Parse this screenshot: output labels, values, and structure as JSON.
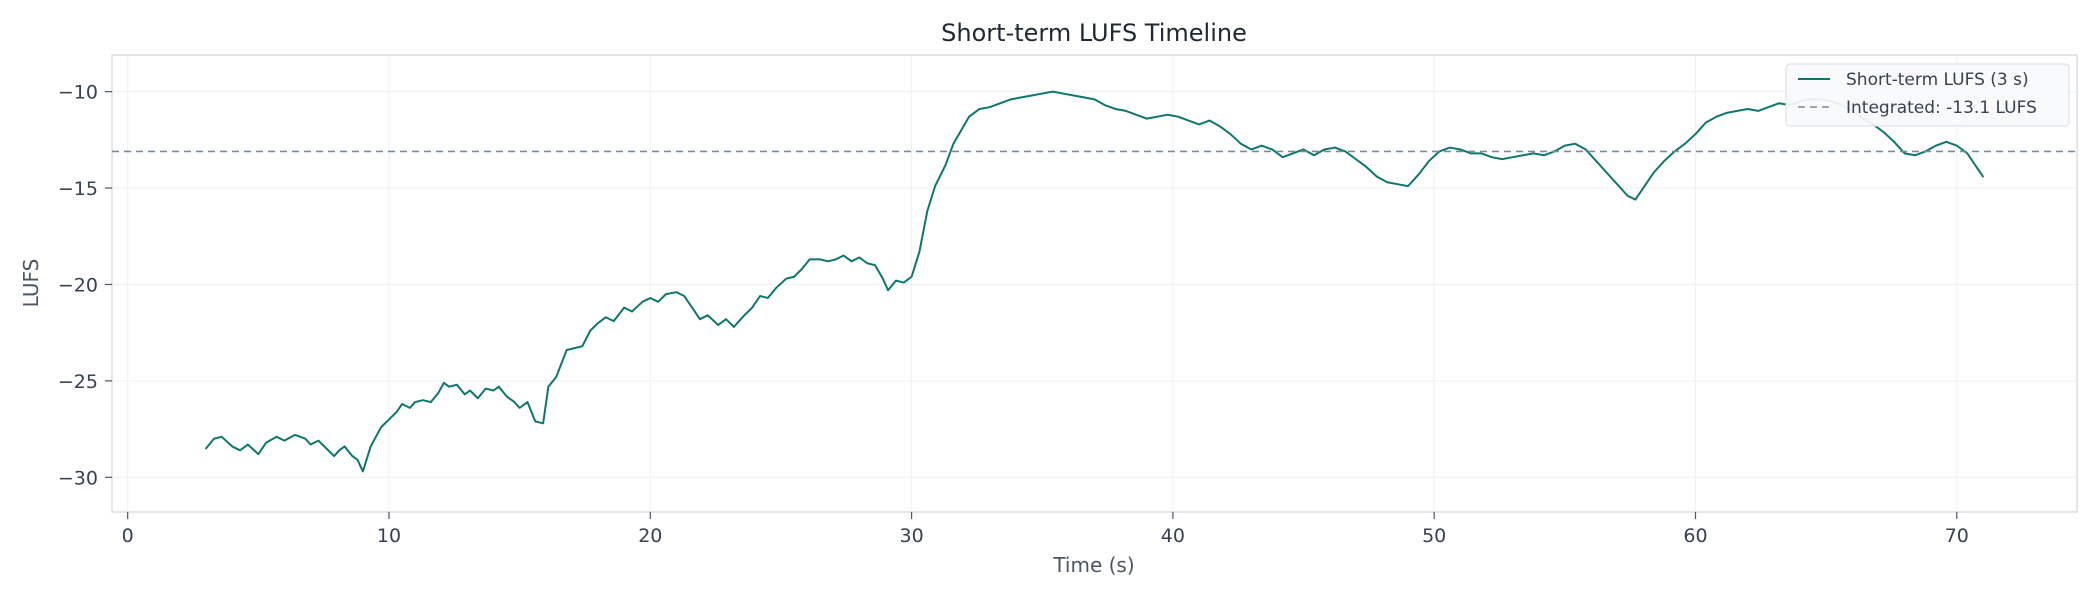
{
  "chart_data": {
    "type": "line",
    "title": "Short-term LUFS Timeline",
    "xlabel": "Time (s)",
    "ylabel": "LUFS",
    "xlim": [
      -0.6,
      74.6
    ],
    "ylim": [
      -31.8,
      -8.1
    ],
    "x_ticks": [
      0,
      10,
      20,
      30,
      40,
      50,
      60,
      70
    ],
    "y_ticks": [
      -10,
      -15,
      -20,
      -25,
      -30
    ],
    "x_tick_labels": [
      "0",
      "10",
      "20",
      "30",
      "40",
      "50",
      "60",
      "70"
    ],
    "y_tick_labels": [
      "−10",
      "−15",
      "−20",
      "−25",
      "−30"
    ],
    "grid": true,
    "legend_position": "top-right",
    "series": [
      {
        "name": "Short-term LUFS (3 s)",
        "color": "#0f766e",
        "style": "solid",
        "points": [
          [
            3.0,
            -28.5
          ],
          [
            3.3,
            -28.0
          ],
          [
            3.6,
            -27.9
          ],
          [
            4.0,
            -28.4
          ],
          [
            4.3,
            -28.6
          ],
          [
            4.6,
            -28.3
          ],
          [
            5.0,
            -28.8
          ],
          [
            5.3,
            -28.2
          ],
          [
            5.7,
            -27.9
          ],
          [
            6.0,
            -28.1
          ],
          [
            6.4,
            -27.8
          ],
          [
            6.8,
            -28.0
          ],
          [
            7.0,
            -28.3
          ],
          [
            7.3,
            -28.1
          ],
          [
            7.6,
            -28.5
          ],
          [
            7.9,
            -28.9
          ],
          [
            8.1,
            -28.6
          ],
          [
            8.3,
            -28.4
          ],
          [
            8.6,
            -28.9
          ],
          [
            8.8,
            -29.1
          ],
          [
            9.0,
            -29.7
          ],
          [
            9.3,
            -28.4
          ],
          [
            9.7,
            -27.4
          ],
          [
            10.0,
            -27.0
          ],
          [
            10.3,
            -26.6
          ],
          [
            10.5,
            -26.2
          ],
          [
            10.8,
            -26.4
          ],
          [
            11.0,
            -26.1
          ],
          [
            11.3,
            -26.0
          ],
          [
            11.6,
            -26.1
          ],
          [
            11.9,
            -25.6
          ],
          [
            12.1,
            -25.1
          ],
          [
            12.3,
            -25.3
          ],
          [
            12.6,
            -25.2
          ],
          [
            12.9,
            -25.7
          ],
          [
            13.1,
            -25.5
          ],
          [
            13.4,
            -25.9
          ],
          [
            13.7,
            -25.4
          ],
          [
            14.0,
            -25.5
          ],
          [
            14.2,
            -25.3
          ],
          [
            14.5,
            -25.8
          ],
          [
            14.8,
            -26.1
          ],
          [
            15.0,
            -26.4
          ],
          [
            15.3,
            -26.1
          ],
          [
            15.6,
            -27.1
          ],
          [
            15.9,
            -27.2
          ],
          [
            16.1,
            -25.3
          ],
          [
            16.4,
            -24.8
          ],
          [
            16.8,
            -23.4
          ],
          [
            17.1,
            -23.3
          ],
          [
            17.4,
            -23.2
          ],
          [
            17.7,
            -22.4
          ],
          [
            18.0,
            -22.0
          ],
          [
            18.3,
            -21.7
          ],
          [
            18.6,
            -21.9
          ],
          [
            19.0,
            -21.2
          ],
          [
            19.3,
            -21.4
          ],
          [
            19.7,
            -20.9
          ],
          [
            20.0,
            -20.7
          ],
          [
            20.3,
            -20.9
          ],
          [
            20.6,
            -20.5
          ],
          [
            21.0,
            -20.4
          ],
          [
            21.3,
            -20.6
          ],
          [
            21.6,
            -21.2
          ],
          [
            21.9,
            -21.8
          ],
          [
            22.2,
            -21.6
          ],
          [
            22.6,
            -22.1
          ],
          [
            22.9,
            -21.8
          ],
          [
            23.2,
            -22.2
          ],
          [
            23.6,
            -21.6
          ],
          [
            23.9,
            -21.2
          ],
          [
            24.2,
            -20.6
          ],
          [
            24.5,
            -20.7
          ],
          [
            24.8,
            -20.2
          ],
          [
            25.2,
            -19.7
          ],
          [
            25.5,
            -19.6
          ],
          [
            25.8,
            -19.2
          ],
          [
            26.1,
            -18.7
          ],
          [
            26.5,
            -18.7
          ],
          [
            26.8,
            -18.8
          ],
          [
            27.1,
            -18.7
          ],
          [
            27.4,
            -18.5
          ],
          [
            27.7,
            -18.8
          ],
          [
            28.0,
            -18.6
          ],
          [
            28.3,
            -18.9
          ],
          [
            28.6,
            -19.0
          ],
          [
            28.9,
            -19.7
          ],
          [
            29.1,
            -20.3
          ],
          [
            29.4,
            -19.8
          ],
          [
            29.7,
            -19.9
          ],
          [
            30.0,
            -19.6
          ],
          [
            30.3,
            -18.3
          ],
          [
            30.6,
            -16.2
          ],
          [
            30.9,
            -14.9
          ],
          [
            31.3,
            -13.8
          ],
          [
            31.6,
            -12.7
          ],
          [
            31.9,
            -12.0
          ],
          [
            32.2,
            -11.3
          ],
          [
            32.6,
            -10.9
          ],
          [
            33.0,
            -10.8
          ],
          [
            33.4,
            -10.6
          ],
          [
            33.8,
            -10.4
          ],
          [
            34.2,
            -10.3
          ],
          [
            34.6,
            -10.2
          ],
          [
            35.0,
            -10.1
          ],
          [
            35.4,
            -10.0
          ],
          [
            35.8,
            -10.1
          ],
          [
            36.2,
            -10.2
          ],
          [
            36.6,
            -10.3
          ],
          [
            37.0,
            -10.4
          ],
          [
            37.4,
            -10.7
          ],
          [
            37.8,
            -10.9
          ],
          [
            38.2,
            -11.0
          ],
          [
            38.6,
            -11.2
          ],
          [
            39.0,
            -11.4
          ],
          [
            39.4,
            -11.3
          ],
          [
            39.8,
            -11.2
          ],
          [
            40.2,
            -11.3
          ],
          [
            40.6,
            -11.5
          ],
          [
            41.0,
            -11.7
          ],
          [
            41.4,
            -11.5
          ],
          [
            41.8,
            -11.8
          ],
          [
            42.2,
            -12.2
          ],
          [
            42.6,
            -12.7
          ],
          [
            43.0,
            -13.0
          ],
          [
            43.4,
            -12.8
          ],
          [
            43.8,
            -13.0
          ],
          [
            44.2,
            -13.4
          ],
          [
            44.6,
            -13.2
          ],
          [
            45.0,
            -13.0
          ],
          [
            45.4,
            -13.3
          ],
          [
            45.8,
            -13.0
          ],
          [
            46.2,
            -12.9
          ],
          [
            46.6,
            -13.1
          ],
          [
            47.0,
            -13.5
          ],
          [
            47.4,
            -13.9
          ],
          [
            47.8,
            -14.4
          ],
          [
            48.2,
            -14.7
          ],
          [
            48.6,
            -14.8
          ],
          [
            49.0,
            -14.9
          ],
          [
            49.4,
            -14.3
          ],
          [
            49.8,
            -13.6
          ],
          [
            50.2,
            -13.1
          ],
          [
            50.6,
            -12.9
          ],
          [
            51.0,
            -13.0
          ],
          [
            51.4,
            -13.2
          ],
          [
            51.8,
            -13.2
          ],
          [
            52.2,
            -13.4
          ],
          [
            52.6,
            -13.5
          ],
          [
            53.0,
            -13.4
          ],
          [
            53.4,
            -13.3
          ],
          [
            53.8,
            -13.2
          ],
          [
            54.2,
            -13.3
          ],
          [
            54.6,
            -13.1
          ],
          [
            55.0,
            -12.8
          ],
          [
            55.4,
            -12.7
          ],
          [
            55.8,
            -13.0
          ],
          [
            56.2,
            -13.6
          ],
          [
            56.6,
            -14.2
          ],
          [
            57.0,
            -14.8
          ],
          [
            57.4,
            -15.4
          ],
          [
            57.7,
            -15.6
          ],
          [
            58.0,
            -15.0
          ],
          [
            58.4,
            -14.2
          ],
          [
            58.8,
            -13.6
          ],
          [
            59.2,
            -13.1
          ],
          [
            59.6,
            -12.7
          ],
          [
            60.0,
            -12.2
          ],
          [
            60.4,
            -11.6
          ],
          [
            60.8,
            -11.3
          ],
          [
            61.2,
            -11.1
          ],
          [
            61.6,
            -11.0
          ],
          [
            62.0,
            -10.9
          ],
          [
            62.4,
            -11.0
          ],
          [
            62.8,
            -10.8
          ],
          [
            63.2,
            -10.6
          ],
          [
            63.6,
            -10.7
          ],
          [
            64.0,
            -10.5
          ],
          [
            64.4,
            -10.4
          ],
          [
            64.8,
            -10.4
          ],
          [
            65.2,
            -10.5
          ],
          [
            65.6,
            -10.7
          ],
          [
            66.0,
            -11.0
          ],
          [
            66.4,
            -11.4
          ],
          [
            66.8,
            -11.7
          ],
          [
            67.2,
            -12.1
          ],
          [
            67.6,
            -12.6
          ],
          [
            68.0,
            -13.2
          ],
          [
            68.4,
            -13.3
          ],
          [
            68.8,
            -13.1
          ],
          [
            69.2,
            -12.8
          ],
          [
            69.6,
            -12.6
          ],
          [
            70.0,
            -12.8
          ],
          [
            70.4,
            -13.2
          ],
          [
            70.8,
            -14.0
          ],
          [
            71.0,
            -14.4
          ]
        ]
      },
      {
        "name": "Integrated: -13.1 LUFS",
        "color": "#7b8aa1",
        "style": "dashed",
        "y_value": -13.1
      }
    ]
  }
}
